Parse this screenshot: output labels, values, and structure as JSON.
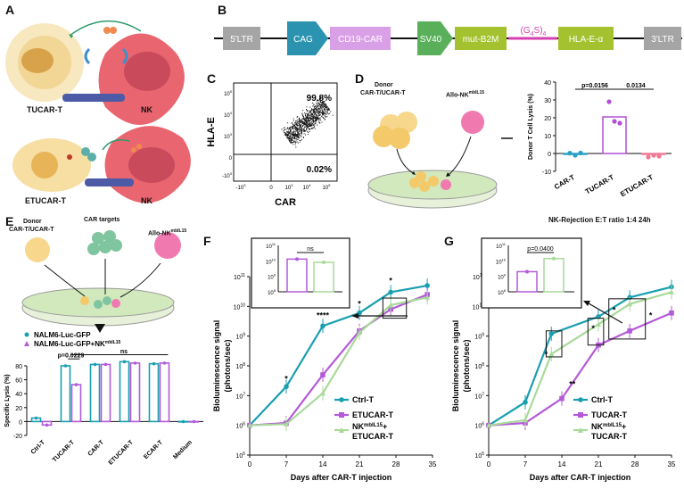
{
  "panels": {
    "A": "A",
    "B": "B",
    "C": "C",
    "D": "D",
    "E": "E",
    "F": "F",
    "G": "G"
  },
  "panel_a": {
    "top_cell": "TUCAR-T",
    "top_nk": "NK",
    "bottom_cell": "ETUCAR-T",
    "bottom_nk": "NK"
  },
  "panel_b": {
    "segments": [
      "5'LTR",
      "CAG",
      "CD19-CAR",
      "SV40",
      "mut-B2M",
      "(G4S)4",
      "HLA-E-α",
      "3'LTR"
    ],
    "colors": {
      "gray": "#a5a5a5",
      "teal": "#2b93b0",
      "pink": "#d9a0e8",
      "green": "#5ab05a",
      "olive": "#a4c22f",
      "magenta": "#d43fb2"
    }
  },
  "panel_c": {
    "ylabel": "HLA-E",
    "xlabel": "CAR",
    "q_top": "99.8%",
    "q_bottom": "0.02%",
    "yticks": [
      "10^5",
      "10^4",
      "10^3",
      "0",
      "-10^3"
    ],
    "xticks": [
      "-10^3",
      "0",
      "10^3",
      "10^4",
      "10^5"
    ]
  },
  "panel_d": {
    "donor": "Donor",
    "donor2": "CAR-T/UCAR-T",
    "nk": "Allo-NK",
    "nk_sup": "mbIL15",
    "caption": "NK-Rejection E:T ratio 1:4 24h"
  },
  "chart_data": [
    {
      "id": "D",
      "type": "bar",
      "title": "",
      "ylabel": "Donor T Cell Lysis (%)",
      "ylim": [
        -10,
        40
      ],
      "yticks": [
        "-10",
        "0",
        "10",
        "20",
        "30",
        "40"
      ],
      "categories": [
        "CAR-T",
        "TUCAR-T",
        "ETUCAR-T"
      ],
      "values": [
        0,
        20.5,
        -0.5
      ],
      "points": [
        [
          0.2,
          -1.0,
          0.3
        ],
        [
          29,
          18,
          17
        ],
        [
          -2,
          -1,
          -1.5
        ]
      ],
      "colors": [
        "#2aa0c6",
        "#b24fd6",
        "#f07a95"
      ],
      "annotations": [
        "p=0.0156",
        "0.0134"
      ]
    },
    {
      "id": "E",
      "type": "bar",
      "ylabel": "Specific Lysis (%)",
      "ylim": [
        -20,
        80
      ],
      "yticks": [
        "-20",
        "0",
        "20",
        "40",
        "60",
        "80"
      ],
      "categories": [
        "Ctrl-T",
        "TUCAR-T",
        "CAR-T",
        "ETUCAR-T",
        "ECAR-T",
        "Medium"
      ],
      "series": [
        {
          "name": "NALM6-Luc-GFP",
          "values": [
            5,
            80,
            82,
            86,
            83,
            0
          ],
          "color": "#1a9fb0"
        },
        {
          "name": "NALM6-Luc-GFP+NK",
          "name_sup": "mbIL15",
          "values": [
            -5,
            53,
            82,
            84,
            84,
            0
          ],
          "color": "#b35ad8"
        }
      ],
      "annotations": [
        "p=0.0229",
        "ns"
      ]
    },
    {
      "id": "F",
      "type": "line",
      "ylabel": "Bioluminescence signal",
      "ylabel2": "(photons/sec)",
      "xlabel": "Days after CAR-T injection",
      "x": [
        0,
        7,
        14,
        21,
        28,
        35
      ],
      "xticks": [
        "0",
        "7",
        "14",
        "21",
        "28",
        "35"
      ],
      "yticks": [
        "10^5",
        "10^6",
        "10^7",
        "10^8",
        "10^9",
        "10^10",
        "10^11"
      ],
      "ylog": [
        5,
        11
      ],
      "series": [
        {
          "name": "Ctrl-T",
          "x": [
            0,
            7,
            14,
            21,
            27,
            34
          ],
          "values": [
            1000000.0,
            20000000.0,
            2200000000.0,
            6000000000.0,
            30000000000.0,
            50000000000.0
          ],
          "color": "#1a9fb0"
        },
        {
          "name": "ETUCAR-T",
          "x": [
            0,
            7,
            14,
            21,
            27,
            34
          ],
          "values": [
            1000000.0,
            1200000.0,
            50000000.0,
            1500000000.0,
            8000000000.0,
            25000000000.0
          ],
          "color": "#b35ad8"
        },
        {
          "name": "NK+ ETUCAR-T",
          "label1": "NK",
          "sup": "mbIL15",
          "label2": "+",
          "label3": "ETUCAR-T",
          "x": [
            0,
            7,
            14,
            21,
            27,
            34
          ],
          "values": [
            1000000.0,
            1100000.0,
            12000000.0,
            1300000000.0,
            11000000000.0,
            20000000000.0
          ],
          "color": "#a9d99a"
        }
      ],
      "stars": [
        "*",
        "****",
        "*",
        "*"
      ],
      "inset": {
        "yticks": [
          "10^11",
          "10^10",
          "10^9",
          "10^8"
        ],
        "values": [
          13000000000.0,
          8000000000.0
        ],
        "annotation": "ns"
      }
    },
    {
      "id": "G",
      "type": "line",
      "ylabel": "Bioluminescence signal",
      "ylabel2": "(photons/sec)",
      "xlabel": "Days after CAR-T injection",
      "x": [
        0,
        7,
        14,
        21,
        28,
        35
      ],
      "xticks": [
        "0",
        "7",
        "14",
        "21",
        "28",
        "35"
      ],
      "yticks": [
        "10^5",
        "10^6",
        "10^7",
        "10^8",
        "10^9",
        "10^10",
        "10^11"
      ],
      "ylog": [
        5,
        11
      ],
      "series": [
        {
          "name": "Ctrl-T",
          "x": [
            0,
            7,
            12,
            21,
            27,
            35
          ],
          "values": [
            1000000.0,
            6000000.0,
            1200000000.0,
            4500000000.0,
            20000000000.0,
            45000000000.0
          ],
          "color": "#1a9fb0"
        },
        {
          "name": "TUCAR-T",
          "x": [
            0,
            7,
            14,
            21,
            27,
            35
          ],
          "values": [
            1000000.0,
            1200000.0,
            8000000.0,
            500000000.0,
            1500000000.0,
            6000000000.0
          ],
          "color": "#b35ad8"
        },
        {
          "name": "NK+ TUCAR-T",
          "label1": "NK",
          "sup": "mbIL15",
          "label2": "+",
          "label3": "TUCAR-T",
          "x": [
            0,
            7,
            12,
            21,
            27,
            35
          ],
          "values": [
            1000000.0,
            1500000.0,
            250000000.0,
            2500000000.0,
            12000000000.0,
            30000000000.0
          ],
          "color": "#a9d99a"
        }
      ],
      "stars": [
        "*",
        "**",
        "*",
        "*",
        "*"
      ],
      "inset": {
        "yticks": [
          "10^11",
          "10^10",
          "10^9",
          "10^8"
        ],
        "values": [
          2000000000.0,
          14000000000.0
        ],
        "annotation": "p=0.0400"
      }
    }
  ],
  "panel_e_labels": {
    "donor": "Donor",
    "donor2": "CAR-T/UCAR-T",
    "targets": "CAR targets",
    "nk": "Allo-NK",
    "nk_sup": "mbIL15"
  }
}
